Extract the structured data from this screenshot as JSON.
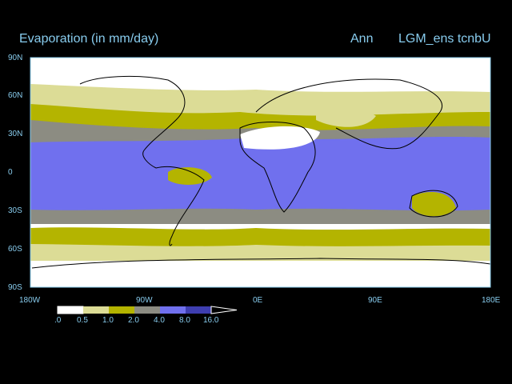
{
  "title": {
    "variable": "Evaporation (in mm/day)",
    "season": "Ann",
    "run": "LGM_ens tcnbU"
  },
  "axes": {
    "y_ticks": [
      "90N",
      "60N",
      "30N",
      "0",
      "30S",
      "60S",
      "90S"
    ],
    "x_ticks": [
      "180W",
      "90W",
      "0E",
      "90E",
      "180E"
    ]
  },
  "colorbar": {
    "levels": [
      ".0",
      "0.5",
      "1.0",
      "2.0",
      "4.0",
      "8.0",
      "16.0"
    ],
    "colors": [
      "#ffffff",
      "#dcdc96",
      "#b4b400",
      "#8c8c82",
      "#7070ee",
      "#3e3eb0"
    ]
  }
}
